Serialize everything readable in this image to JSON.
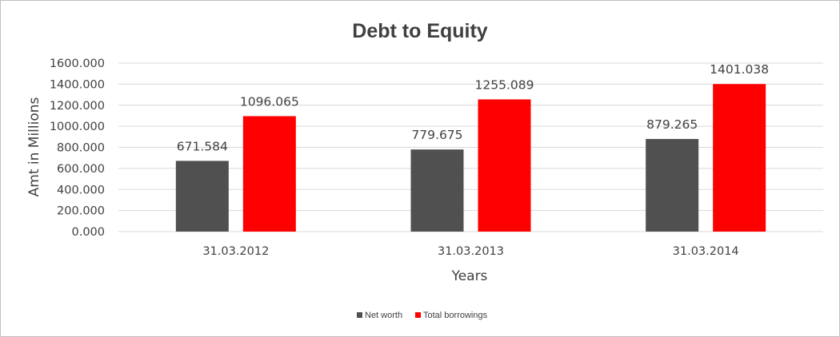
{
  "chart_data": {
    "type": "bar",
    "title": "Debt to Equity",
    "xlabel": "Years",
    "ylabel": "Amt in Millions",
    "categories": [
      "31.03.2012",
      "31.03.2013",
      "31.03.2014"
    ],
    "series": [
      {
        "name": "Net worth",
        "values": [
          671.584,
          779.675,
          879.265
        ],
        "color": "#505050"
      },
      {
        "name": "Total borrowings",
        "values": [
          1096.065,
          1255.089,
          1401.038
        ],
        "color": "#ff0000"
      }
    ],
    "ylim": [
      0,
      1600
    ],
    "yticks": [
      "0.000",
      "200.000",
      "400.000",
      "600.000",
      "800.000",
      "1000.000",
      "1200.000",
      "1400.000",
      "1600.000"
    ],
    "data_labels": [
      [
        "671.584",
        "779.675",
        "879.265"
      ],
      [
        "1096.065",
        "1255.089",
        "1401.038"
      ]
    ],
    "grid": true,
    "legend_position": "bottom",
    "gridline_color": "#d9d9d9"
  }
}
